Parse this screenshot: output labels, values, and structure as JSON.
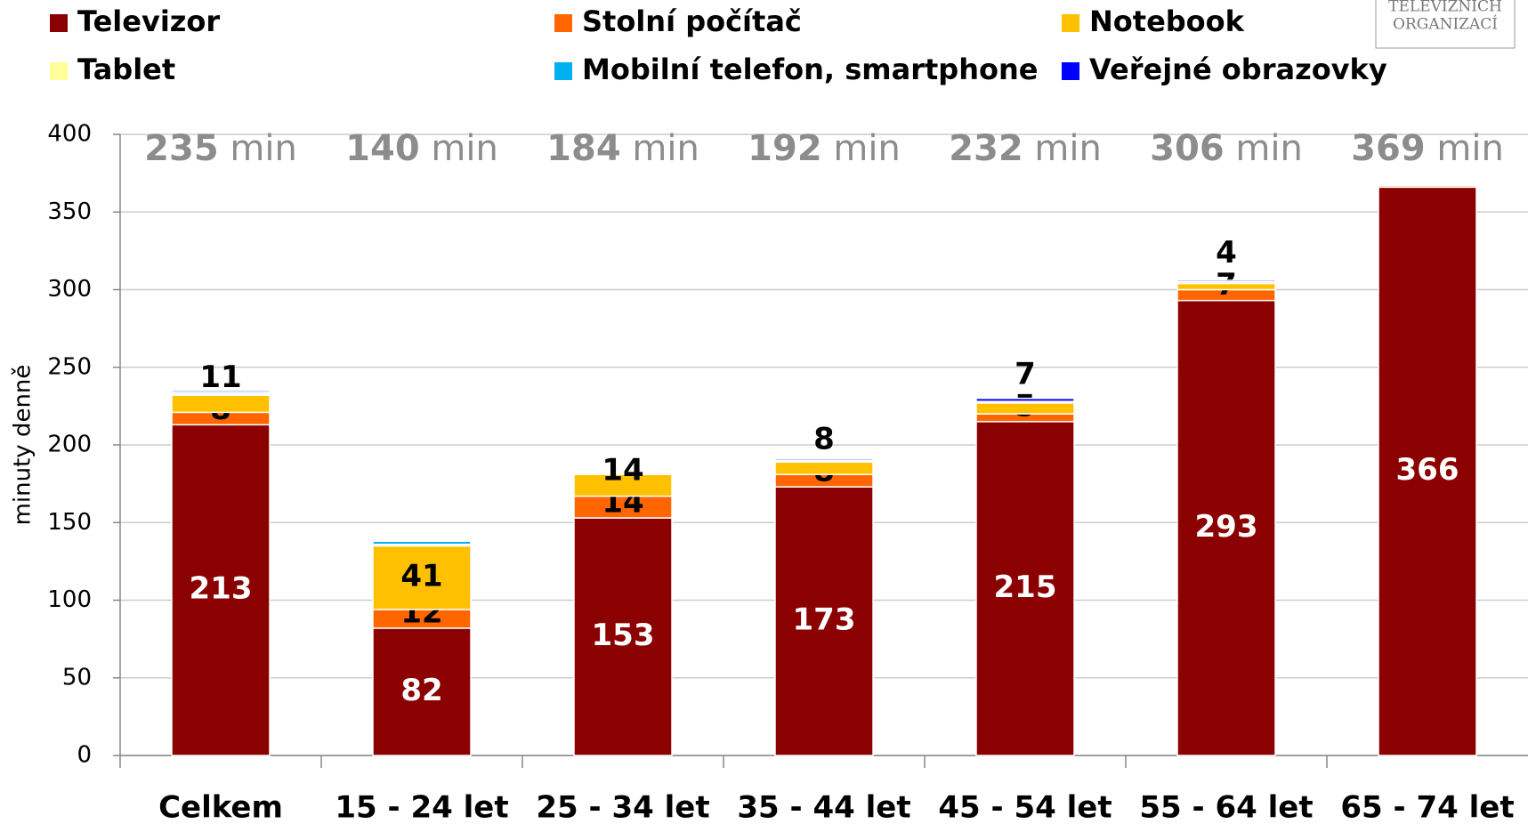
{
  "chart_data": {
    "type": "bar",
    "stacked": true,
    "y_label": "minuty denně",
    "logo": [
      "TELEVIZNÍCH",
      "ORGANIZACÍ"
    ],
    "categories": [
      "Celkem",
      "15 - 24 let",
      "25 - 34 let",
      "35 - 44 let",
      "45 - 54 let",
      "55 - 64 let",
      "65 - 74 let"
    ],
    "totals": [
      235,
      140,
      184,
      192,
      232,
      306,
      369
    ],
    "total_unit": "min",
    "ylim": [
      0,
      400
    ],
    "yticks": [
      0,
      50,
      100,
      150,
      200,
      250,
      300,
      350,
      400
    ],
    "series": [
      {
        "name": "Televizor",
        "color": "#8b0000",
        "values": [
          213,
          82,
          153,
          173,
          215,
          293,
          366
        ],
        "value_labels": [
          "213",
          "82",
          "153",
          "173",
          "215",
          "293",
          "366"
        ]
      },
      {
        "name": "Stolní počítač",
        "color": "#ff6600",
        "values": [
          8,
          12,
          14,
          8,
          5,
          7,
          1
        ],
        "value_labels": [
          "8",
          "12",
          "14",
          "8",
          "5",
          "7",
          null
        ]
      },
      {
        "name": "Notebook",
        "color": "#ffc000",
        "values": [
          11,
          41,
          14,
          8,
          7,
          4,
          0
        ],
        "value_labels": [
          "11",
          "41",
          "14",
          "8",
          "7",
          "4",
          null
        ]
      },
      {
        "name": "Tablet",
        "color": "#ffff99",
        "values": [
          1,
          1,
          0,
          1,
          1,
          1,
          0
        ],
        "value_labels": [
          null,
          null,
          null,
          null,
          null,
          null,
          null
        ]
      },
      {
        "name": "Mobilní telefon, smartphone",
        "color": "#00b0f0",
        "values": [
          1,
          2,
          0,
          0,
          0,
          0,
          0
        ],
        "value_labels": [
          null,
          null,
          null,
          null,
          null,
          null,
          null
        ]
      },
      {
        "name": "Veřejné obrazovky",
        "color": "#0000ff",
        "values": [
          1,
          0,
          0,
          1,
          2,
          1,
          0
        ],
        "value_labels": [
          null,
          null,
          null,
          null,
          null,
          null,
          null
        ]
      }
    ]
  }
}
